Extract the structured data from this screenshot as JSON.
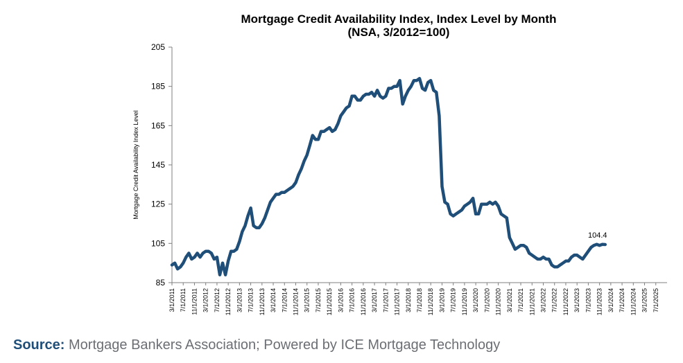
{
  "chart_data": {
    "type": "line",
    "title": "Mortgage Credit Availability Index, Index Level by Month",
    "subtitle": "(NSA, 3/2012=100)",
    "xlabel": "",
    "ylabel": "Mortgage Credit Availability Index Level",
    "ylim": [
      85,
      205
    ],
    "yticks": [
      "205",
      "185",
      "165",
      "145",
      "125",
      "105",
      "85"
    ],
    "xticks": [
      "3/1/2011",
      "7/1/2011",
      "11/1/2011",
      "3/1/2012",
      "7/1/2012",
      "11/1/2012",
      "3/1/2013",
      "7/1/2013",
      "11/1/2013",
      "3/1/2014",
      "7/1/2014",
      "11/1/2014",
      "3/1/2015",
      "7/1/2015",
      "11/1/2015",
      "3/1/2016",
      "7/1/2016",
      "11/1/2016",
      "3/1/2017",
      "7/1/2017",
      "11/1/2017",
      "3/1/2018",
      "7/1/2018",
      "11/1/2018",
      "3/1/2019",
      "7/1/2019",
      "11/1/2019",
      "3/1/2020",
      "7/1/2020",
      "11/1/2020",
      "3/1/2021",
      "7/1/2021",
      "11/1/2021",
      "3/1/2022",
      "7/1/2022",
      "11/1/2022",
      "3/1/2023",
      "7/1/2023",
      "11/1/2023",
      "3/1/2024",
      "7/1/2024",
      "11/1/2024",
      "3/1/2025",
      "7/1/2025"
    ],
    "grid": false,
    "line_color": "#1f4e79",
    "annotation": {
      "text": "104.4",
      "x": "9/1/2025",
      "y": 104.4
    },
    "series": [
      {
        "name": "",
        "x_start": "3/1/2011",
        "x_step": "1 month",
        "values": [
          94,
          95,
          92,
          93,
          95,
          98,
          100,
          97,
          98,
          100,
          98,
          100,
          101,
          101,
          100,
          97,
          98,
          89,
          95,
          89,
          96,
          101,
          101,
          102,
          106,
          111,
          114,
          119,
          123,
          114,
          113,
          113,
          115,
          118,
          122,
          126,
          128,
          130,
          130,
          131,
          131,
          132,
          133,
          134,
          136,
          140,
          143,
          147,
          150,
          155,
          160,
          158,
          158,
          162,
          162,
          163,
          164,
          162,
          163,
          166,
          170,
          172,
          174,
          175,
          180,
          180,
          178,
          178,
          180,
          181,
          181,
          182,
          180,
          183,
          180,
          179,
          180,
          184,
          184,
          185,
          185,
          188,
          176,
          180,
          183,
          185,
          188,
          188,
          189,
          184,
          183,
          187,
          188,
          183,
          182,
          170,
          134,
          126,
          125,
          120,
          119,
          120,
          121,
          122,
          124,
          125,
          126,
          128,
          120,
          120,
          125,
          125,
          125,
          126,
          125,
          126,
          124,
          120,
          119,
          118,
          108,
          105,
          102,
          103,
          104,
          104,
          103,
          100,
          99,
          98,
          97,
          97,
          98,
          97,
          97,
          94,
          93,
          93,
          94,
          95,
          96,
          96,
          98,
          99,
          99,
          98,
          97,
          99,
          101,
          103,
          104,
          104.5,
          104,
          104.5,
          104.4
        ]
      }
    ]
  },
  "source": {
    "label": "Source:",
    "text": " Mortgage Bankers Association; Powered by ICE Mortgage Technology"
  }
}
